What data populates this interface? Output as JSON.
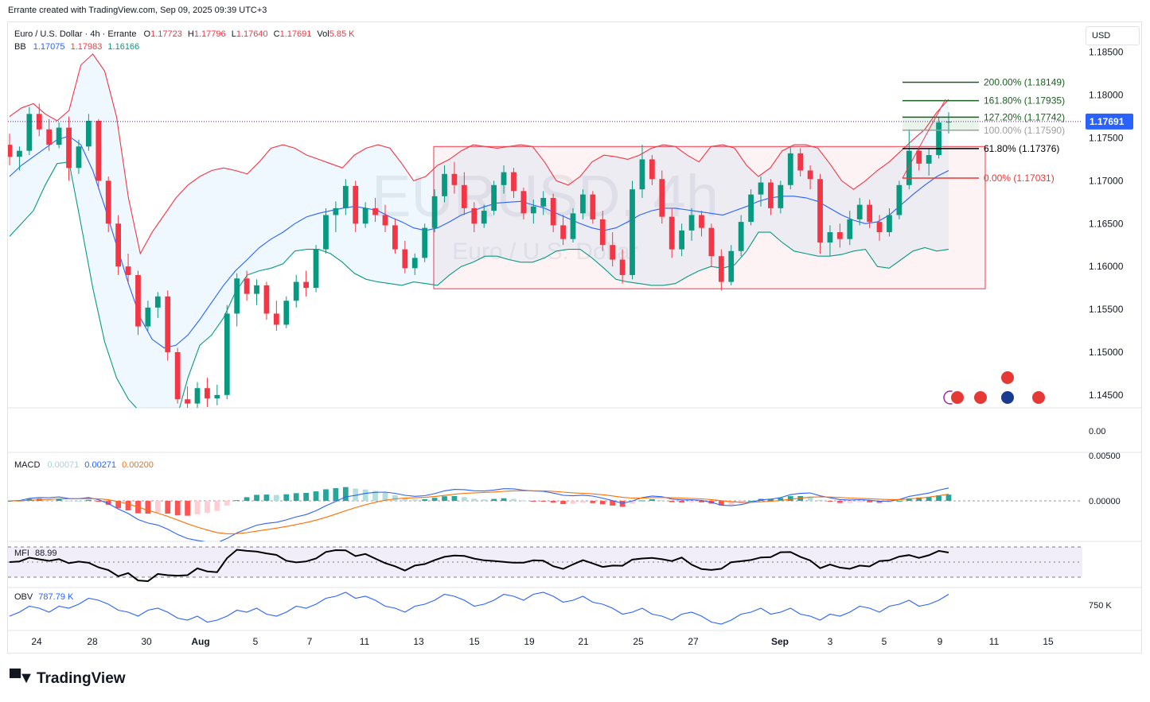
{
  "header": {
    "attribution": "Errante created with TradingView.com, Sep 09, 2025 09:39 UTC+3"
  },
  "legend": {
    "title": "Euro / U.S. Dollar · 4h · Errante",
    "o_label": "O",
    "o": "1.17723",
    "h_label": "H",
    "h": "1.17796",
    "l_label": "L",
    "l": "1.17640",
    "c_label": "C",
    "c": "1.17691",
    "vol_label": "Vol",
    "vol": "5.85 K",
    "bb_label": "BB",
    "bb_basis": "1.17075",
    "bb_upper": "1.17983",
    "bb_lower": "1.16166"
  },
  "currency_button": "USD",
  "watermark": {
    "symbol": "EURUSD, 4h",
    "name": "Euro / U.S. Dollar"
  },
  "price_axis": {
    "ticks": [
      "1.18500",
      "1.18000",
      "1.17500",
      "1.17000",
      "1.16500",
      "1.16000",
      "1.15500",
      "1.15000",
      "1.14500"
    ],
    "last_price": "1.17691",
    "volume_pane_label": "0.00"
  },
  "fib_levels": [
    {
      "label": "200.00% (1.18149)",
      "price": 1.18149,
      "color": "#1b5e20"
    },
    {
      "label": "161.80% (1.17935)",
      "price": 1.17935,
      "color": "#1b5e20"
    },
    {
      "label": "127.20% (1.17742)",
      "price": 1.17742,
      "color": "#1b5e20"
    },
    {
      "label": "100.00% (1.17590)",
      "price": 1.1759,
      "color": "#9e9e9e"
    },
    {
      "label": "61.80% (1.17376)",
      "price": 1.17376,
      "color": "#000000"
    },
    {
      "label": "0.00% (1.17031)",
      "price": 1.17031,
      "color": "#e53935"
    }
  ],
  "macd": {
    "label": "MACD",
    "hist": "0.00071",
    "macd": "0.00271",
    "signal": "0.00200",
    "ticks": [
      "0.00500",
      "0.00000"
    ],
    "hist_color": "#26a69a",
    "macd_color": "#2962ff",
    "signal_color": "#ff6d00"
  },
  "mfi": {
    "label": "MFI",
    "value": "88.99"
  },
  "obv": {
    "label": "OBV",
    "value": "787.79 K",
    "tick": "750 K"
  },
  "time_axis": [
    "24",
    "28",
    "30",
    "Aug",
    "5",
    "7",
    "11",
    "13",
    "15",
    "19",
    "21",
    "25",
    "27",
    "Sep",
    "3",
    "5",
    "9",
    "11",
    "15"
  ],
  "brand": "TradingView",
  "colors": {
    "up": "#089981",
    "down": "#f23645",
    "bb_upper": "#f23645",
    "bb_basis": "#2962ff",
    "bb_lower": "#089981",
    "range_box": "#f23645"
  },
  "chart_data": {
    "type": "candlestick",
    "title": "Euro / U.S. Dollar · 4h · Errante",
    "ylim": [
      1.1435,
      1.1885
    ],
    "candles": [
      [
        1.1742,
        1.1755,
        1.1718,
        1.1728
      ],
      [
        1.1728,
        1.174,
        1.1712,
        1.1735
      ],
      [
        1.1735,
        1.1786,
        1.173,
        1.1778
      ],
      [
        1.1778,
        1.179,
        1.1752,
        1.176
      ],
      [
        1.176,
        1.1772,
        1.1735,
        1.1742
      ],
      [
        1.1742,
        1.1768,
        1.1738,
        1.1762
      ],
      [
        1.1762,
        1.1775,
        1.17,
        1.1715
      ],
      [
        1.1715,
        1.1748,
        1.1708,
        1.174
      ],
      [
        1.174,
        1.1778,
        1.1735,
        1.177
      ],
      [
        1.177,
        1.1772,
        1.169,
        1.17
      ],
      [
        1.17,
        1.1705,
        1.164,
        1.165
      ],
      [
        1.165,
        1.166,
        1.159,
        1.16
      ],
      [
        1.16,
        1.1615,
        1.158,
        1.159
      ],
      [
        1.159,
        1.1595,
        1.152,
        1.153
      ],
      [
        1.153,
        1.156,
        1.1525,
        1.1552
      ],
      [
        1.1552,
        1.157,
        1.154,
        1.1565
      ],
      [
        1.1565,
        1.1572,
        1.149,
        1.15
      ],
      [
        1.15,
        1.1505,
        1.144,
        1.1445
      ],
      [
        1.1445,
        1.146,
        1.1428,
        1.144
      ],
      [
        1.144,
        1.1465,
        1.1432,
        1.1458
      ],
      [
        1.1458,
        1.147,
        1.1436,
        1.1446
      ],
      [
        1.1446,
        1.1462,
        1.1438,
        1.145
      ],
      [
        1.145,
        1.1555,
        1.1445,
        1.1545
      ],
      [
        1.1545,
        1.1592,
        1.153,
        1.1586
      ],
      [
        1.1586,
        1.1595,
        1.156,
        1.1568
      ],
      [
        1.1568,
        1.1585,
        1.1555,
        1.1578
      ],
      [
        1.1578,
        1.1582,
        1.1538,
        1.1545
      ],
      [
        1.1545,
        1.156,
        1.1525,
        1.1532
      ],
      [
        1.1532,
        1.1565,
        1.1528,
        1.156
      ],
      [
        1.156,
        1.159,
        1.1552,
        1.1582
      ],
      [
        1.1582,
        1.1595,
        1.1565,
        1.1575
      ],
      [
        1.1575,
        1.1625,
        1.157,
        1.162
      ],
      [
        1.162,
        1.1668,
        1.1615,
        1.166
      ],
      [
        1.166,
        1.1676,
        1.164,
        1.1668
      ],
      [
        1.1668,
        1.1702,
        1.166,
        1.1694
      ],
      [
        1.1694,
        1.17,
        1.164,
        1.165
      ],
      [
        1.165,
        1.1675,
        1.1645,
        1.1668
      ],
      [
        1.1668,
        1.168,
        1.1652,
        1.166
      ],
      [
        1.166,
        1.1672,
        1.164,
        1.1648
      ],
      [
        1.1648,
        1.1655,
        1.1615,
        1.162
      ],
      [
        1.162,
        1.163,
        1.1592,
        1.1598
      ],
      [
        1.1598,
        1.1615,
        1.159,
        1.161
      ],
      [
        1.161,
        1.165,
        1.1605,
        1.1645
      ],
      [
        1.1645,
        1.169,
        1.164,
        1.1682
      ],
      [
        1.1682,
        1.1718,
        1.1675,
        1.1708
      ],
      [
        1.1708,
        1.1722,
        1.1685,
        1.1695
      ],
      [
        1.1695,
        1.171,
        1.166,
        1.1668
      ],
      [
        1.1668,
        1.1675,
        1.164,
        1.165
      ],
      [
        1.165,
        1.1672,
        1.1645,
        1.1665
      ],
      [
        1.1665,
        1.17,
        1.166,
        1.1695
      ],
      [
        1.1695,
        1.1718,
        1.1685,
        1.171
      ],
      [
        1.171,
        1.1715,
        1.168,
        1.1688
      ],
      [
        1.1688,
        1.1692,
        1.1655,
        1.1662
      ],
      [
        1.1662,
        1.1678,
        1.165,
        1.167
      ],
      [
        1.167,
        1.1688,
        1.166,
        1.168
      ],
      [
        1.168,
        1.1685,
        1.164,
        1.1648
      ],
      [
        1.1648,
        1.166,
        1.1625,
        1.1632
      ],
      [
        1.1632,
        1.1668,
        1.1628,
        1.1662
      ],
      [
        1.1662,
        1.169,
        1.1655,
        1.1684
      ],
      [
        1.1684,
        1.1688,
        1.165,
        1.1655
      ],
      [
        1.1655,
        1.1665,
        1.1618,
        1.1625
      ],
      [
        1.1625,
        1.164,
        1.16,
        1.1608
      ],
      [
        1.1608,
        1.162,
        1.158,
        1.159
      ],
      [
        1.159,
        1.17,
        1.1585,
        1.169
      ],
      [
        1.169,
        1.1742,
        1.168,
        1.1725
      ],
      [
        1.1725,
        1.173,
        1.1695,
        1.1702
      ],
      [
        1.1702,
        1.1712,
        1.165,
        1.1658
      ],
      [
        1.1658,
        1.1668,
        1.161,
        1.162
      ],
      [
        1.162,
        1.165,
        1.1612,
        1.1642
      ],
      [
        1.1642,
        1.1668,
        1.163,
        1.166
      ],
      [
        1.166,
        1.1665,
        1.1635,
        1.1645
      ],
      [
        1.1645,
        1.165,
        1.16,
        1.1612
      ],
      [
        1.1612,
        1.162,
        1.1572,
        1.1582
      ],
      [
        1.1582,
        1.1625,
        1.1578,
        1.1618
      ],
      [
        1.1618,
        1.166,
        1.1612,
        1.1652
      ],
      [
        1.1652,
        1.169,
        1.1648,
        1.1684
      ],
      [
        1.1684,
        1.1705,
        1.167,
        1.1698
      ],
      [
        1.1698,
        1.1702,
        1.166,
        1.1668
      ],
      [
        1.1668,
        1.17,
        1.1662,
        1.1695
      ],
      [
        1.1695,
        1.174,
        1.169,
        1.1732
      ],
      [
        1.1732,
        1.1738,
        1.1705,
        1.1712
      ],
      [
        1.1712,
        1.1718,
        1.169,
        1.1702
      ],
      [
        1.1702,
        1.1708,
        1.1615,
        1.1628
      ],
      [
        1.1628,
        1.1648,
        1.1612,
        1.164
      ],
      [
        1.164,
        1.165,
        1.1622,
        1.1632
      ],
      [
        1.1632,
        1.1665,
        1.1625,
        1.1655
      ],
      [
        1.1655,
        1.168,
        1.1648,
        1.1672
      ],
      [
        1.1672,
        1.1678,
        1.1645,
        1.1652
      ],
      [
        1.1652,
        1.166,
        1.163,
        1.164
      ],
      [
        1.164,
        1.1668,
        1.1635,
        1.166
      ],
      [
        1.166,
        1.17,
        1.1655,
        1.1695
      ],
      [
        1.1695,
        1.176,
        1.169,
        1.1735
      ],
      [
        1.1735,
        1.174,
        1.1712,
        1.172
      ],
      [
        1.172,
        1.1738,
        1.1706,
        1.173
      ],
      [
        1.173,
        1.1775,
        1.1726,
        1.1768
      ],
      [
        1.1768,
        1.178,
        1.1755,
        1.1769
      ]
    ],
    "bb_upper": [
      1.1775,
      1.1785,
      1.179,
      1.1778,
      1.177,
      1.1782,
      1.1835,
      1.1848,
      1.1828,
      1.1775,
      1.168,
      1.1615,
      1.164,
      1.166,
      1.168,
      1.1695,
      1.1705,
      1.1712,
      1.1715,
      1.1712,
      1.1708,
      1.1722,
      1.1738,
      1.1742,
      1.1738,
      1.173,
      1.1725,
      1.172,
      1.1715,
      1.173,
      1.1738,
      1.1742,
      1.1738,
      1.172,
      1.17,
      1.1705,
      1.1718,
      1.1725,
      1.1735,
      1.1742,
      1.174,
      1.1738,
      1.174,
      1.1742,
      1.174,
      1.1722,
      1.17,
      1.1695,
      1.1705,
      1.1722,
      1.173,
      1.1728,
      1.1725,
      1.173,
      1.1738,
      1.1742,
      1.174,
      1.173,
      1.1722,
      1.174,
      1.1742,
      1.1738,
      1.1718,
      1.1705,
      1.1715,
      1.1735,
      1.1742,
      1.1742,
      1.1738,
      1.172,
      1.17,
      1.169,
      1.17,
      1.1712,
      1.1722,
      1.1735,
      1.1748,
      1.176,
      1.178,
      1.1795
    ],
    "bb_basis": [
      1.1705,
      1.1718,
      1.1728,
      1.1738,
      1.1748,
      1.1752,
      1.1742,
      1.1712,
      1.167,
      1.1625,
      1.158,
      1.154,
      1.1515,
      1.1505,
      1.1508,
      1.152,
      1.1538,
      1.1558,
      1.1578,
      1.1595,
      1.1608,
      1.1622,
      1.1632,
      1.164,
      1.165,
      1.1658,
      1.1662,
      1.1665,
      1.1668,
      1.167,
      1.1668,
      1.1665,
      1.1658,
      1.1652,
      1.1645,
      1.1642,
      1.1645,
      1.1652,
      1.166,
      1.1665,
      1.167,
      1.1674,
      1.1675,
      1.1676,
      1.1672,
      1.1668,
      1.1662,
      1.1656,
      1.165,
      1.1645,
      1.1642,
      1.1645,
      1.1652,
      1.166,
      1.1665,
      1.1668,
      1.1668,
      1.1666,
      1.1664,
      1.1662,
      1.166,
      1.1665,
      1.167,
      1.1676,
      1.168,
      1.1682,
      1.1682,
      1.168,
      1.1676,
      1.1668,
      1.166,
      1.1654,
      1.165,
      1.1652,
      1.166,
      1.1672,
      1.1684,
      1.1695,
      1.1705,
      1.1712
    ],
    "bb_lower": [
      1.1635,
      1.165,
      1.1665,
      1.1695,
      1.172,
      1.1722,
      1.165,
      1.1575,
      1.1512,
      1.147,
      1.1445,
      1.143,
      1.1425,
      1.142,
      1.142,
      1.147,
      1.1508,
      1.152,
      1.154,
      1.157,
      1.159,
      1.1595,
      1.1598,
      1.1603,
      1.1618,
      1.162,
      1.162,
      1.1615,
      1.1605,
      1.1592,
      1.1585,
      1.1582,
      1.158,
      1.1578,
      1.1582,
      1.158,
      1.1578,
      1.159,
      1.16,
      1.1605,
      1.1612,
      1.1612,
      1.1608,
      1.1605,
      1.1605,
      1.161,
      1.1618,
      1.162,
      1.162,
      1.161,
      1.1598,
      1.1585,
      1.1582,
      1.158,
      1.1578,
      1.1578,
      1.158,
      1.1588,
      1.1595,
      1.16,
      1.1598,
      1.1602,
      1.1618,
      1.164,
      1.164,
      1.1628,
      1.1618,
      1.1615,
      1.1612,
      1.1612,
      1.1614,
      1.1618,
      1.162,
      1.16,
      1.1598,
      1.1608,
      1.1618,
      1.1622,
      1.1618,
      1.162
    ],
    "range_box": {
      "high": 1.174,
      "low": 1.1574
    }
  }
}
